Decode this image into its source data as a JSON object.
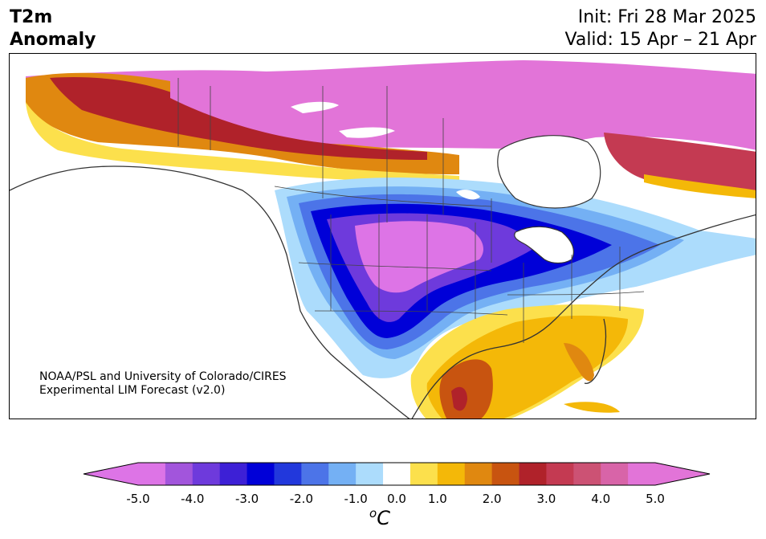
{
  "header": {
    "variable": "T2m",
    "field": "Anomaly",
    "init": "Init: Fri 28 Mar 2025",
    "valid": "Valid: 15 Apr – 21 Apr"
  },
  "credit": {
    "line1": "NOAA/PSL and University of Colorado/CIRES",
    "line2": "Experimental LIM Forecast (v2.0)"
  },
  "colorbar": {
    "levels": [
      -5.0,
      -4.5,
      -4.0,
      -3.5,
      -3.0,
      -2.5,
      -2.0,
      -1.5,
      -1.0,
      -0.5,
      0.5,
      1.0,
      1.5,
      2.0,
      2.5,
      3.0,
      3.5,
      4.0,
      4.5,
      5.0
    ],
    "colors": [
      "#dd74e6",
      "#a255dc",
      "#6e3adc",
      "#3d20d6",
      "#0000d8",
      "#2238dc",
      "#4c74e8",
      "#74b0f4",
      "#acdcfc",
      "#ffffff",
      "#fce04c",
      "#f4b808",
      "#e08810",
      "#c85410",
      "#b0222a",
      "#c43a52",
      "#cc5274",
      "#d864a8",
      "#e274d8"
    ],
    "extend_low": "#dd74e6",
    "extend_high": "#e274d8",
    "ticks": [
      "-5.0",
      "-4.0",
      "-3.0",
      "-2.0",
      "-1.0",
      "0.0",
      "1.0",
      "2.0",
      "3.0",
      "4.0",
      "5.0"
    ],
    "unit_base": "C",
    "unit_sup": "o"
  }
}
